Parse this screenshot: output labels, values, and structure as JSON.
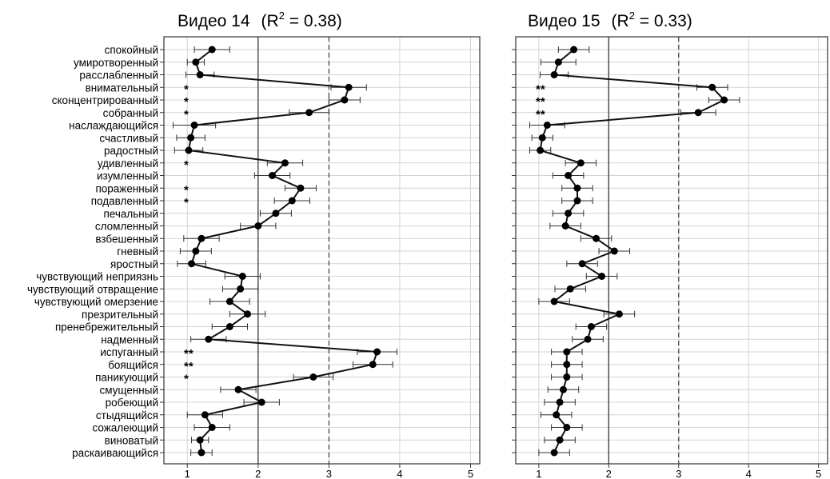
{
  "chart_data": [
    {
      "type": "line",
      "title_main": "Видео 14",
      "r2_label": "R",
      "r2_exp": "2",
      "r2_value": " = 0.38)",
      "r2_open": "(",
      "categories": [
        "спокойный",
        "умиротворенный",
        "расслабленный",
        "внимательный",
        "сконцентрированный",
        "собранный",
        "наслаждающийся",
        "счастливый",
        "радостный",
        "удивленный",
        "изумленный",
        "пораженный",
        "подавленный",
        "печальный",
        "сломленный",
        "взбешенный",
        "гневный",
        "яростный",
        "чувствующий неприязнь",
        "чувствующий отвращение",
        "чувствующий омерзение",
        "презрительный",
        "пренебрежительный",
        "надменный",
        "испуганный",
        "боящийся",
        "паникующий",
        "смущенный",
        "робеющий",
        "стыдящийся",
        "сожалеющий",
        "виноватый",
        "раскаивающийся"
      ],
      "values": [
        1.35,
        1.12,
        1.18,
        3.28,
        3.22,
        2.72,
        1.1,
        1.05,
        1.02,
        2.38,
        2.2,
        2.6,
        2.48,
        2.25,
        2.0,
        1.2,
        1.12,
        1.06,
        1.78,
        1.75,
        1.6,
        1.85,
        1.6,
        1.3,
        3.68,
        3.62,
        2.78,
        1.72,
        2.05,
        1.25,
        1.35,
        1.18,
        1.2
      ],
      "errors": [
        0.25,
        0.12,
        0.2,
        0.25,
        0.22,
        0.28,
        0.3,
        0.2,
        0.2,
        0.25,
        0.25,
        0.22,
        0.25,
        0.22,
        0.25,
        0.25,
        0.22,
        0.2,
        0.25,
        0.25,
        0.28,
        0.25,
        0.25,
        0.25,
        0.28,
        0.28,
        0.28,
        0.25,
        0.25,
        0.25,
        0.25,
        0.12,
        0.15
      ],
      "significance": {
        "3": "*",
        "4": "*",
        "5": "*",
        "9": "*",
        "11": "*",
        "12": "*",
        "24": "**",
        "25": "**",
        "26": "*"
      },
      "x_ticks": [
        "1",
        "2",
        "3",
        "4",
        "5"
      ],
      "xlim": [
        0.67,
        5.13
      ],
      "vlines": [
        {
          "x": 2,
          "style": "solid"
        },
        {
          "x": 3,
          "style": "dashed"
        }
      ],
      "grid": true
    },
    {
      "type": "line",
      "title_main": "Видео 15",
      "r2_label": "R",
      "r2_exp": "2",
      "r2_value": " = 0.33)",
      "r2_open": "(",
      "values": [
        1.5,
        1.28,
        1.22,
        3.48,
        3.65,
        3.28,
        1.12,
        1.05,
        1.02,
        1.6,
        1.42,
        1.55,
        1.55,
        1.42,
        1.38,
        1.82,
        2.08,
        1.62,
        1.9,
        1.45,
        1.22,
        2.15,
        1.75,
        1.7,
        1.4,
        1.4,
        1.4,
        1.35,
        1.3,
        1.25,
        1.4,
        1.3,
        1.22
      ],
      "errors": [
        0.22,
        0.25,
        0.2,
        0.22,
        0.22,
        0.25,
        0.25,
        0.15,
        0.15,
        0.22,
        0.22,
        0.22,
        0.22,
        0.22,
        0.22,
        0.22,
        0.22,
        0.22,
        0.22,
        0.22,
        0.22,
        0.22,
        0.22,
        0.22,
        0.22,
        0.22,
        0.22,
        0.22,
        0.22,
        0.22,
        0.22,
        0.22,
        0.22
      ],
      "significance": {
        "3": "**",
        "4": "**",
        "5": "**"
      },
      "x_ticks": [
        "1",
        "2",
        "3",
        "4",
        "5"
      ],
      "xlim": [
        0.67,
        5.13
      ],
      "vlines": [
        {
          "x": 2,
          "style": "solid"
        },
        {
          "x": 3,
          "style": "dashed"
        }
      ],
      "grid": true
    }
  ]
}
